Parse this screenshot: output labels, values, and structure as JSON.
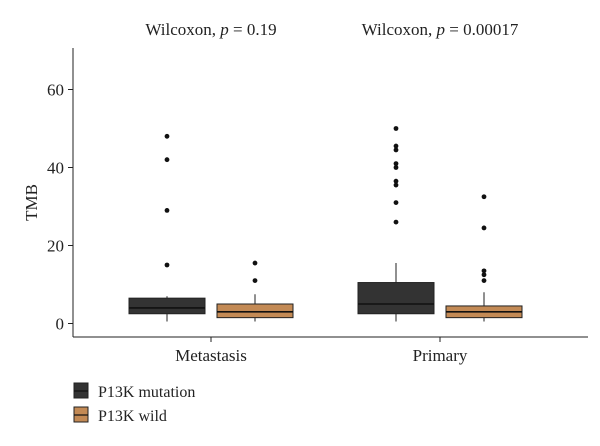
{
  "chart_data": {
    "type": "box",
    "ylabel": "TMB",
    "ylim": [
      0,
      70
    ],
    "yticks": [
      0,
      20,
      40,
      60
    ],
    "categories": [
      "Metastasis",
      "Primary"
    ],
    "annotations": [
      {
        "category": "Metastasis",
        "prefix": "Wilcoxon, ",
        "p_symbol": "p",
        "suffix": " = 0.19"
      },
      {
        "category": "Primary",
        "prefix": "Wilcoxon, ",
        "p_symbol": "p",
        "suffix": " = 0.00017"
      }
    ],
    "series": [
      {
        "name": "P13K mutation",
        "color": "#333333",
        "boxes": [
          {
            "category": "Metastasis",
            "whisker_low": 0.5,
            "q1": 2.5,
            "median": 4,
            "q3": 6.5,
            "whisker_high": 7,
            "outliers": [
              15,
              29,
              42,
              48
            ]
          },
          {
            "category": "Primary",
            "whisker_low": 0.5,
            "q1": 2.5,
            "median": 5,
            "q3": 10.5,
            "whisker_high": 15.5,
            "outliers": [
              26,
              31,
              35.5,
              36.5,
              40,
              41,
              44.5,
              45.5,
              50
            ]
          }
        ]
      },
      {
        "name": "P13K wild",
        "color": "#c38a55",
        "boxes": [
          {
            "category": "Metastasis",
            "whisker_low": 0.5,
            "q1": 1.5,
            "median": 3,
            "q3": 5,
            "whisker_high": 7.5,
            "outliers": [
              11,
              15.5
            ]
          },
          {
            "category": "Primary",
            "whisker_low": 0.5,
            "q1": 1.5,
            "median": 3,
            "q3": 4.5,
            "whisker_high": 8,
            "outliers": [
              11,
              12.5,
              13.5,
              24.5,
              32.5
            ]
          }
        ]
      }
    ],
    "legend_position": "bottom-left",
    "grid": false
  }
}
